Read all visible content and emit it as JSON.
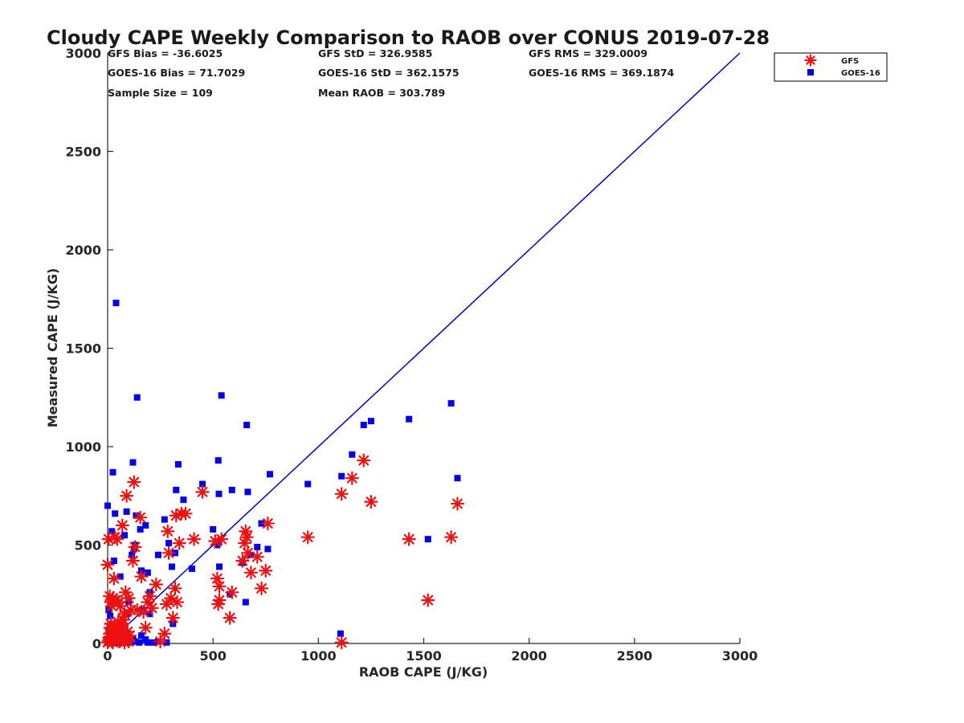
{
  "chart_data": {
    "type": "scatter",
    "title": "Cloudy CAPE Weekly Comparison to RAOB over CONUS 2019-07-28",
    "xlabel": "RAOB CAPE (J/KG)",
    "ylabel": "Measured CAPE (J/KG)",
    "xlim": [
      0,
      3000
    ],
    "ylim": [
      0,
      3000
    ],
    "x_ticks": [
      "0",
      "500",
      "1000",
      "1500",
      "2000",
      "2500",
      "3000"
    ],
    "y_ticks": [
      "0",
      "500",
      "1000",
      "1500",
      "2000",
      "2500",
      "3000"
    ],
    "grid": false,
    "legend_position": "top-right",
    "stats": {
      "gfs_bias": "GFS Bias = -36.6025",
      "gfs_std": "GFS StD = 326.9585",
      "gfs_rms": "GFS RMS = 329.0009",
      "goes_bias": "GOES-16 Bias = 71.7029",
      "goes_std": "GOES-16 StD = 362.1575",
      "goes_rms": "GOES-16 RMS = 369.1874",
      "sample_size": "Sample Size = 109",
      "mean_raob": "Mean RAOB = 303.789"
    },
    "reference_line": {
      "x": [
        0,
        3000
      ],
      "y": [
        0,
        3000
      ],
      "color": "#0000cc"
    },
    "series": [
      {
        "name": "GFS",
        "marker": "asterisk",
        "color": "#ee1111",
        "points": [
          [
            0,
            5
          ],
          [
            5,
            15
          ],
          [
            8,
            30
          ],
          [
            10,
            50
          ],
          [
            12,
            80
          ],
          [
            15,
            100
          ],
          [
            20,
            10
          ],
          [
            25,
            5
          ],
          [
            30,
            20
          ],
          [
            35,
            40
          ],
          [
            40,
            60
          ],
          [
            45,
            90
          ],
          [
            50,
            110
          ],
          [
            55,
            10
          ],
          [
            60,
            30
          ],
          [
            65,
            70
          ],
          [
            70,
            100
          ],
          [
            75,
            120
          ],
          [
            80,
            5
          ],
          [
            85,
            40
          ],
          [
            90,
            20
          ],
          [
            95,
            60
          ],
          [
            100,
            10
          ],
          [
            105,
            40
          ],
          [
            0,
            400
          ],
          [
            5,
            530
          ],
          [
            10,
            240
          ],
          [
            15,
            210
          ],
          [
            20,
            190
          ],
          [
            25,
            230
          ],
          [
            30,
            330
          ],
          [
            35,
            540
          ],
          [
            40,
            220
          ],
          [
            45,
            530
          ],
          [
            50,
            210
          ],
          [
            60,
            190
          ],
          [
            70,
            600
          ],
          [
            80,
            150
          ],
          [
            85,
            260
          ],
          [
            90,
            750
          ],
          [
            100,
            230
          ],
          [
            110,
            170
          ],
          [
            120,
            420
          ],
          [
            125,
            820
          ],
          [
            130,
            490
          ],
          [
            140,
            170
          ],
          [
            155,
            640
          ],
          [
            160,
            340
          ],
          [
            170,
            160
          ],
          [
            180,
            80
          ],
          [
            190,
            210
          ],
          [
            200,
            240
          ],
          [
            210,
            180
          ],
          [
            230,
            300
          ],
          [
            250,
            10
          ],
          [
            270,
            50
          ],
          [
            280,
            200
          ],
          [
            285,
            570
          ],
          [
            290,
            460
          ],
          [
            300,
            230
          ],
          [
            310,
            130
          ],
          [
            320,
            280
          ],
          [
            325,
            650
          ],
          [
            330,
            210
          ],
          [
            340,
            510
          ],
          [
            350,
            660
          ],
          [
            370,
            660
          ],
          [
            410,
            530
          ],
          [
            450,
            770
          ],
          [
            510,
            520
          ],
          [
            520,
            330
          ],
          [
            525,
            200
          ],
          [
            530,
            220
          ],
          [
            530,
            290
          ],
          [
            540,
            530
          ],
          [
            580,
            130
          ],
          [
            590,
            260
          ],
          [
            640,
            420
          ],
          [
            650,
            510
          ],
          [
            655,
            570
          ],
          [
            660,
            540
          ],
          [
            665,
            460
          ],
          [
            680,
            360
          ],
          [
            710,
            440
          ],
          [
            730,
            280
          ],
          [
            750,
            370
          ],
          [
            760,
            610
          ],
          [
            950,
            540
          ],
          [
            1110,
            5
          ],
          [
            1110,
            760
          ],
          [
            1160,
            840
          ],
          [
            1215,
            930
          ],
          [
            1250,
            720
          ],
          [
            1430,
            530
          ],
          [
            1520,
            220
          ],
          [
            1630,
            540
          ],
          [
            1660,
            710
          ]
        ]
      },
      {
        "name": "GOES-16",
        "marker": "square",
        "color": "#0000ee",
        "points": [
          [
            0,
            5
          ],
          [
            5,
            20
          ],
          [
            8,
            50
          ],
          [
            10,
            80
          ],
          [
            12,
            140
          ],
          [
            15,
            5
          ],
          [
            20,
            10
          ],
          [
            25,
            30
          ],
          [
            30,
            60
          ],
          [
            35,
            5
          ],
          [
            40,
            20
          ],
          [
            45,
            10
          ],
          [
            50,
            40
          ],
          [
            55,
            5
          ],
          [
            60,
            20
          ],
          [
            65,
            60
          ],
          [
            70,
            5
          ],
          [
            80,
            10
          ],
          [
            90,
            150
          ],
          [
            100,
            30
          ],
          [
            110,
            5
          ],
          [
            120,
            20
          ],
          [
            130,
            10
          ],
          [
            150,
            5
          ],
          [
            160,
            40
          ],
          [
            170,
            170
          ],
          [
            180,
            20
          ],
          [
            190,
            5
          ],
          [
            200,
            150
          ],
          [
            220,
            5
          ],
          [
            240,
            10
          ],
          [
            280,
            5
          ],
          [
            310,
            100
          ],
          [
            0,
            700
          ],
          [
            5,
            170
          ],
          [
            20,
            570
          ],
          [
            25,
            870
          ],
          [
            30,
            420
          ],
          [
            35,
            660
          ],
          [
            40,
            1730
          ],
          [
            60,
            340
          ],
          [
            80,
            550
          ],
          [
            90,
            670
          ],
          [
            100,
            210
          ],
          [
            115,
            450
          ],
          [
            120,
            920
          ],
          [
            125,
            480
          ],
          [
            130,
            500
          ],
          [
            135,
            650
          ],
          [
            140,
            1250
          ],
          [
            155,
            580
          ],
          [
            160,
            370
          ],
          [
            180,
            600
          ],
          [
            190,
            360
          ],
          [
            200,
            260
          ],
          [
            240,
            450
          ],
          [
            270,
            630
          ],
          [
            290,
            510
          ],
          [
            305,
            390
          ],
          [
            320,
            460
          ],
          [
            325,
            780
          ],
          [
            335,
            910
          ],
          [
            360,
            730
          ],
          [
            400,
            380
          ],
          [
            450,
            810
          ],
          [
            500,
            580
          ],
          [
            520,
            500
          ],
          [
            525,
            930
          ],
          [
            528,
            760
          ],
          [
            530,
            390
          ],
          [
            540,
            1260
          ],
          [
            580,
            250
          ],
          [
            590,
            780
          ],
          [
            640,
            410
          ],
          [
            655,
            210
          ],
          [
            660,
            1110
          ],
          [
            665,
            770
          ],
          [
            680,
            450
          ],
          [
            710,
            490
          ],
          [
            730,
            610
          ],
          [
            760,
            480
          ],
          [
            770,
            860
          ],
          [
            950,
            810
          ],
          [
            1105,
            50
          ],
          [
            1110,
            850
          ],
          [
            1160,
            960
          ],
          [
            1215,
            1110
          ],
          [
            1250,
            1130
          ],
          [
            1430,
            1140
          ],
          [
            1520,
            530
          ],
          [
            1630,
            1220
          ],
          [
            1660,
            840
          ]
        ]
      }
    ]
  }
}
